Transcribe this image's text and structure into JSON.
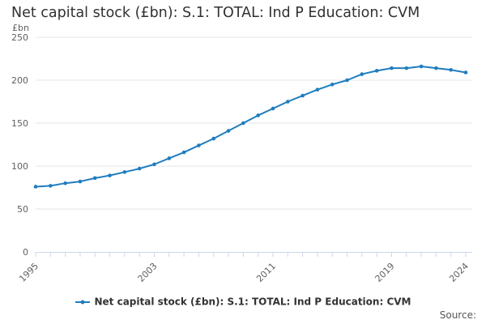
{
  "title": "Net capital stock (£bn): S.1: TOTAL: Ind P Education: CVM",
  "unit": "£bn",
  "source_label": "Source:",
  "colors": {
    "series": "#1f7dbf",
    "grid": "#e6e6e6",
    "axis": "#ccd6eb",
    "text": "#606060"
  },
  "chart_data": {
    "type": "line",
    "title": "Net capital stock (£bn): S.1: TOTAL: Ind P Education: CVM",
    "ylabel": "£bn",
    "xlabel": "",
    "ylim": [
      0,
      250
    ],
    "xlim": [
      1995,
      2024
    ],
    "yticks": [
      0,
      50,
      100,
      150,
      200,
      250
    ],
    "xticks": [
      1995,
      2003,
      2011,
      2019,
      2024
    ],
    "grid": true,
    "legend_position": "bottom",
    "series": [
      {
        "name": "Net capital stock (£bn): S.1: TOTAL: Ind P Education: CVM",
        "x": [
          1995,
          1996,
          1997,
          1998,
          1999,
          2000,
          2001,
          2002,
          2003,
          2004,
          2005,
          2006,
          2007,
          2008,
          2009,
          2010,
          2011,
          2012,
          2013,
          2014,
          2015,
          2016,
          2017,
          2018,
          2019,
          2020,
          2021,
          2022,
          2023,
          2024
        ],
        "values": [
          76,
          77,
          80,
          82,
          86,
          89,
          93,
          97,
          102,
          109,
          116,
          124,
          132,
          141,
          150,
          159,
          167,
          175,
          182,
          189,
          195,
          200,
          207,
          211,
          214,
          214,
          216,
          214,
          212,
          209
        ]
      }
    ]
  }
}
